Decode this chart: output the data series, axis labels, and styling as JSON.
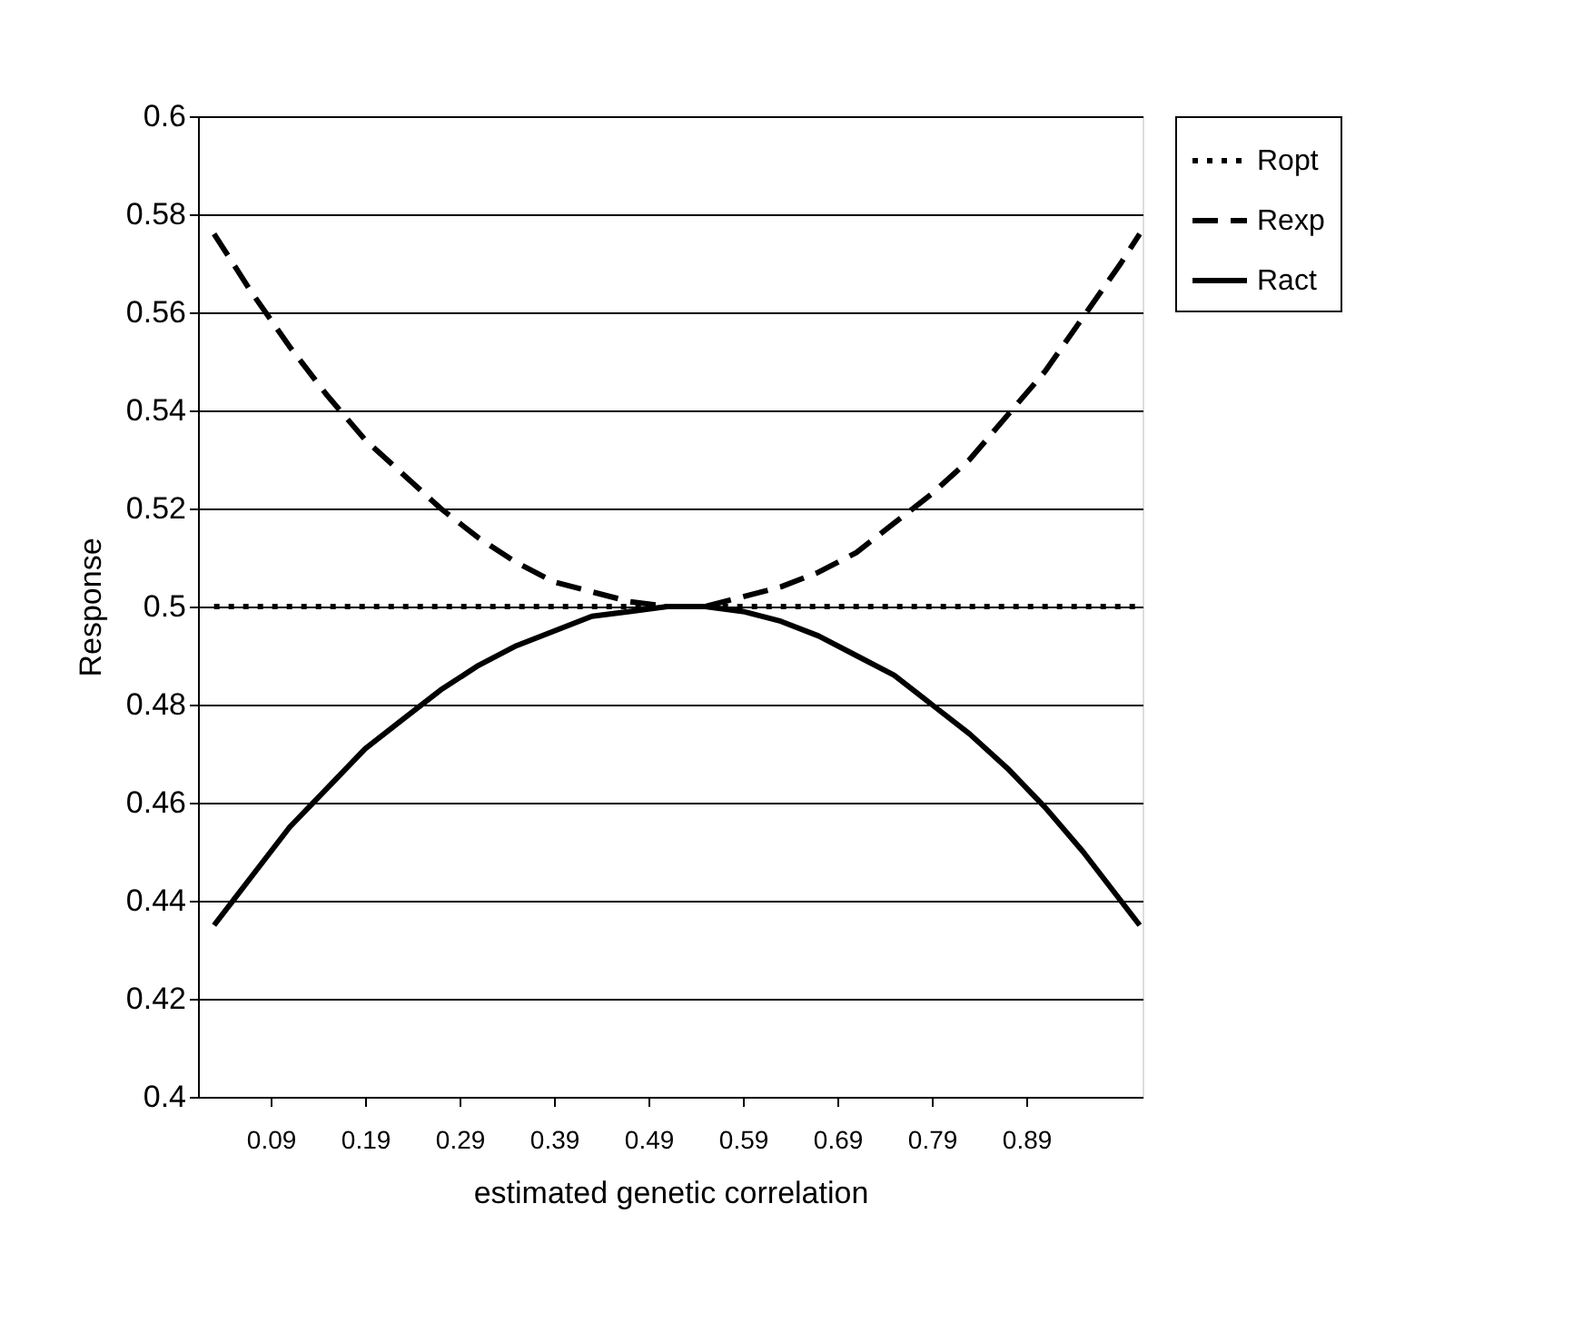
{
  "chart_data": {
    "type": "line",
    "xlabel": "estimated genetic correlation",
    "ylabel": "Response",
    "x": [
      0.03,
      0.07,
      0.11,
      0.15,
      0.19,
      0.23,
      0.27,
      0.31,
      0.35,
      0.39,
      0.43,
      0.47,
      0.51,
      0.55,
      0.59,
      0.63,
      0.67,
      0.71,
      0.75,
      0.79,
      0.83,
      0.87,
      0.91,
      0.95,
      0.99,
      1.01
    ],
    "series": [
      {
        "name": "Ropt",
        "color": "#000000",
        "line_style": "dotted",
        "values": [
          0.5,
          0.5,
          0.5,
          0.5,
          0.5,
          0.5,
          0.5,
          0.5,
          0.5,
          0.5,
          0.5,
          0.5,
          0.5,
          0.5,
          0.5,
          0.5,
          0.5,
          0.5,
          0.5,
          0.5,
          0.5,
          0.5,
          0.5,
          0.5,
          0.5,
          0.5
        ]
      },
      {
        "name": "Rexp",
        "color": "#000000",
        "line_style": "dashed",
        "values": [
          0.576,
          0.564,
          0.553,
          0.543,
          0.534,
          0.527,
          0.52,
          0.514,
          0.509,
          0.505,
          0.503,
          0.501,
          0.5,
          0.5,
          0.502,
          0.504,
          0.507,
          0.511,
          0.517,
          0.523,
          0.53,
          0.539,
          0.548,
          0.559,
          0.57,
          0.576
        ]
      },
      {
        "name": "Ract",
        "color": "#000000",
        "line_style": "solid",
        "values": [
          0.435,
          0.445,
          0.455,
          0.463,
          0.471,
          0.477,
          0.483,
          0.488,
          0.492,
          0.495,
          0.498,
          0.499,
          0.5,
          0.5,
          0.499,
          0.497,
          0.494,
          0.49,
          0.486,
          0.48,
          0.474,
          0.467,
          0.459,
          0.45,
          0.44,
          0.435
        ]
      }
    ],
    "xlim": [
      0.013,
      1.013
    ],
    "xticks": [
      0.09,
      0.19,
      0.29,
      0.39,
      0.49,
      0.59,
      0.69,
      0.79,
      0.89
    ],
    "ylim": [
      0.4,
      0.6
    ],
    "yticks": [
      0.4,
      0.42,
      0.44,
      0.46,
      0.48,
      0.5,
      0.52,
      0.54,
      0.56,
      0.58,
      0.6
    ],
    "grid": "y",
    "legend": "right",
    "marker": "none"
  }
}
